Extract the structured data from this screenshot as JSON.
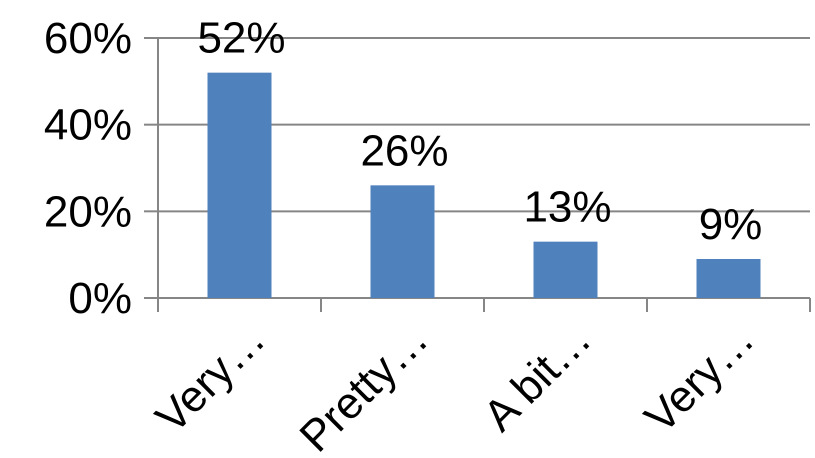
{
  "chart_data": {
    "type": "bar",
    "categories": [
      "Very…",
      "Pretty…",
      "A bit…",
      "Very…"
    ],
    "values": [
      52,
      26,
      13,
      9
    ],
    "data_labels": [
      "52%",
      "26%",
      "13%",
      "9%"
    ],
    "yticks": [
      0,
      20,
      40,
      60
    ],
    "ytick_labels": [
      "0%",
      "20%",
      "40%",
      "60%"
    ],
    "ylim": [
      0,
      60
    ],
    "grid": true,
    "legend": "none",
    "bar_color": "#4f81bd",
    "grid_color": "#868686",
    "title": "",
    "xlabel": "",
    "ylabel": ""
  }
}
